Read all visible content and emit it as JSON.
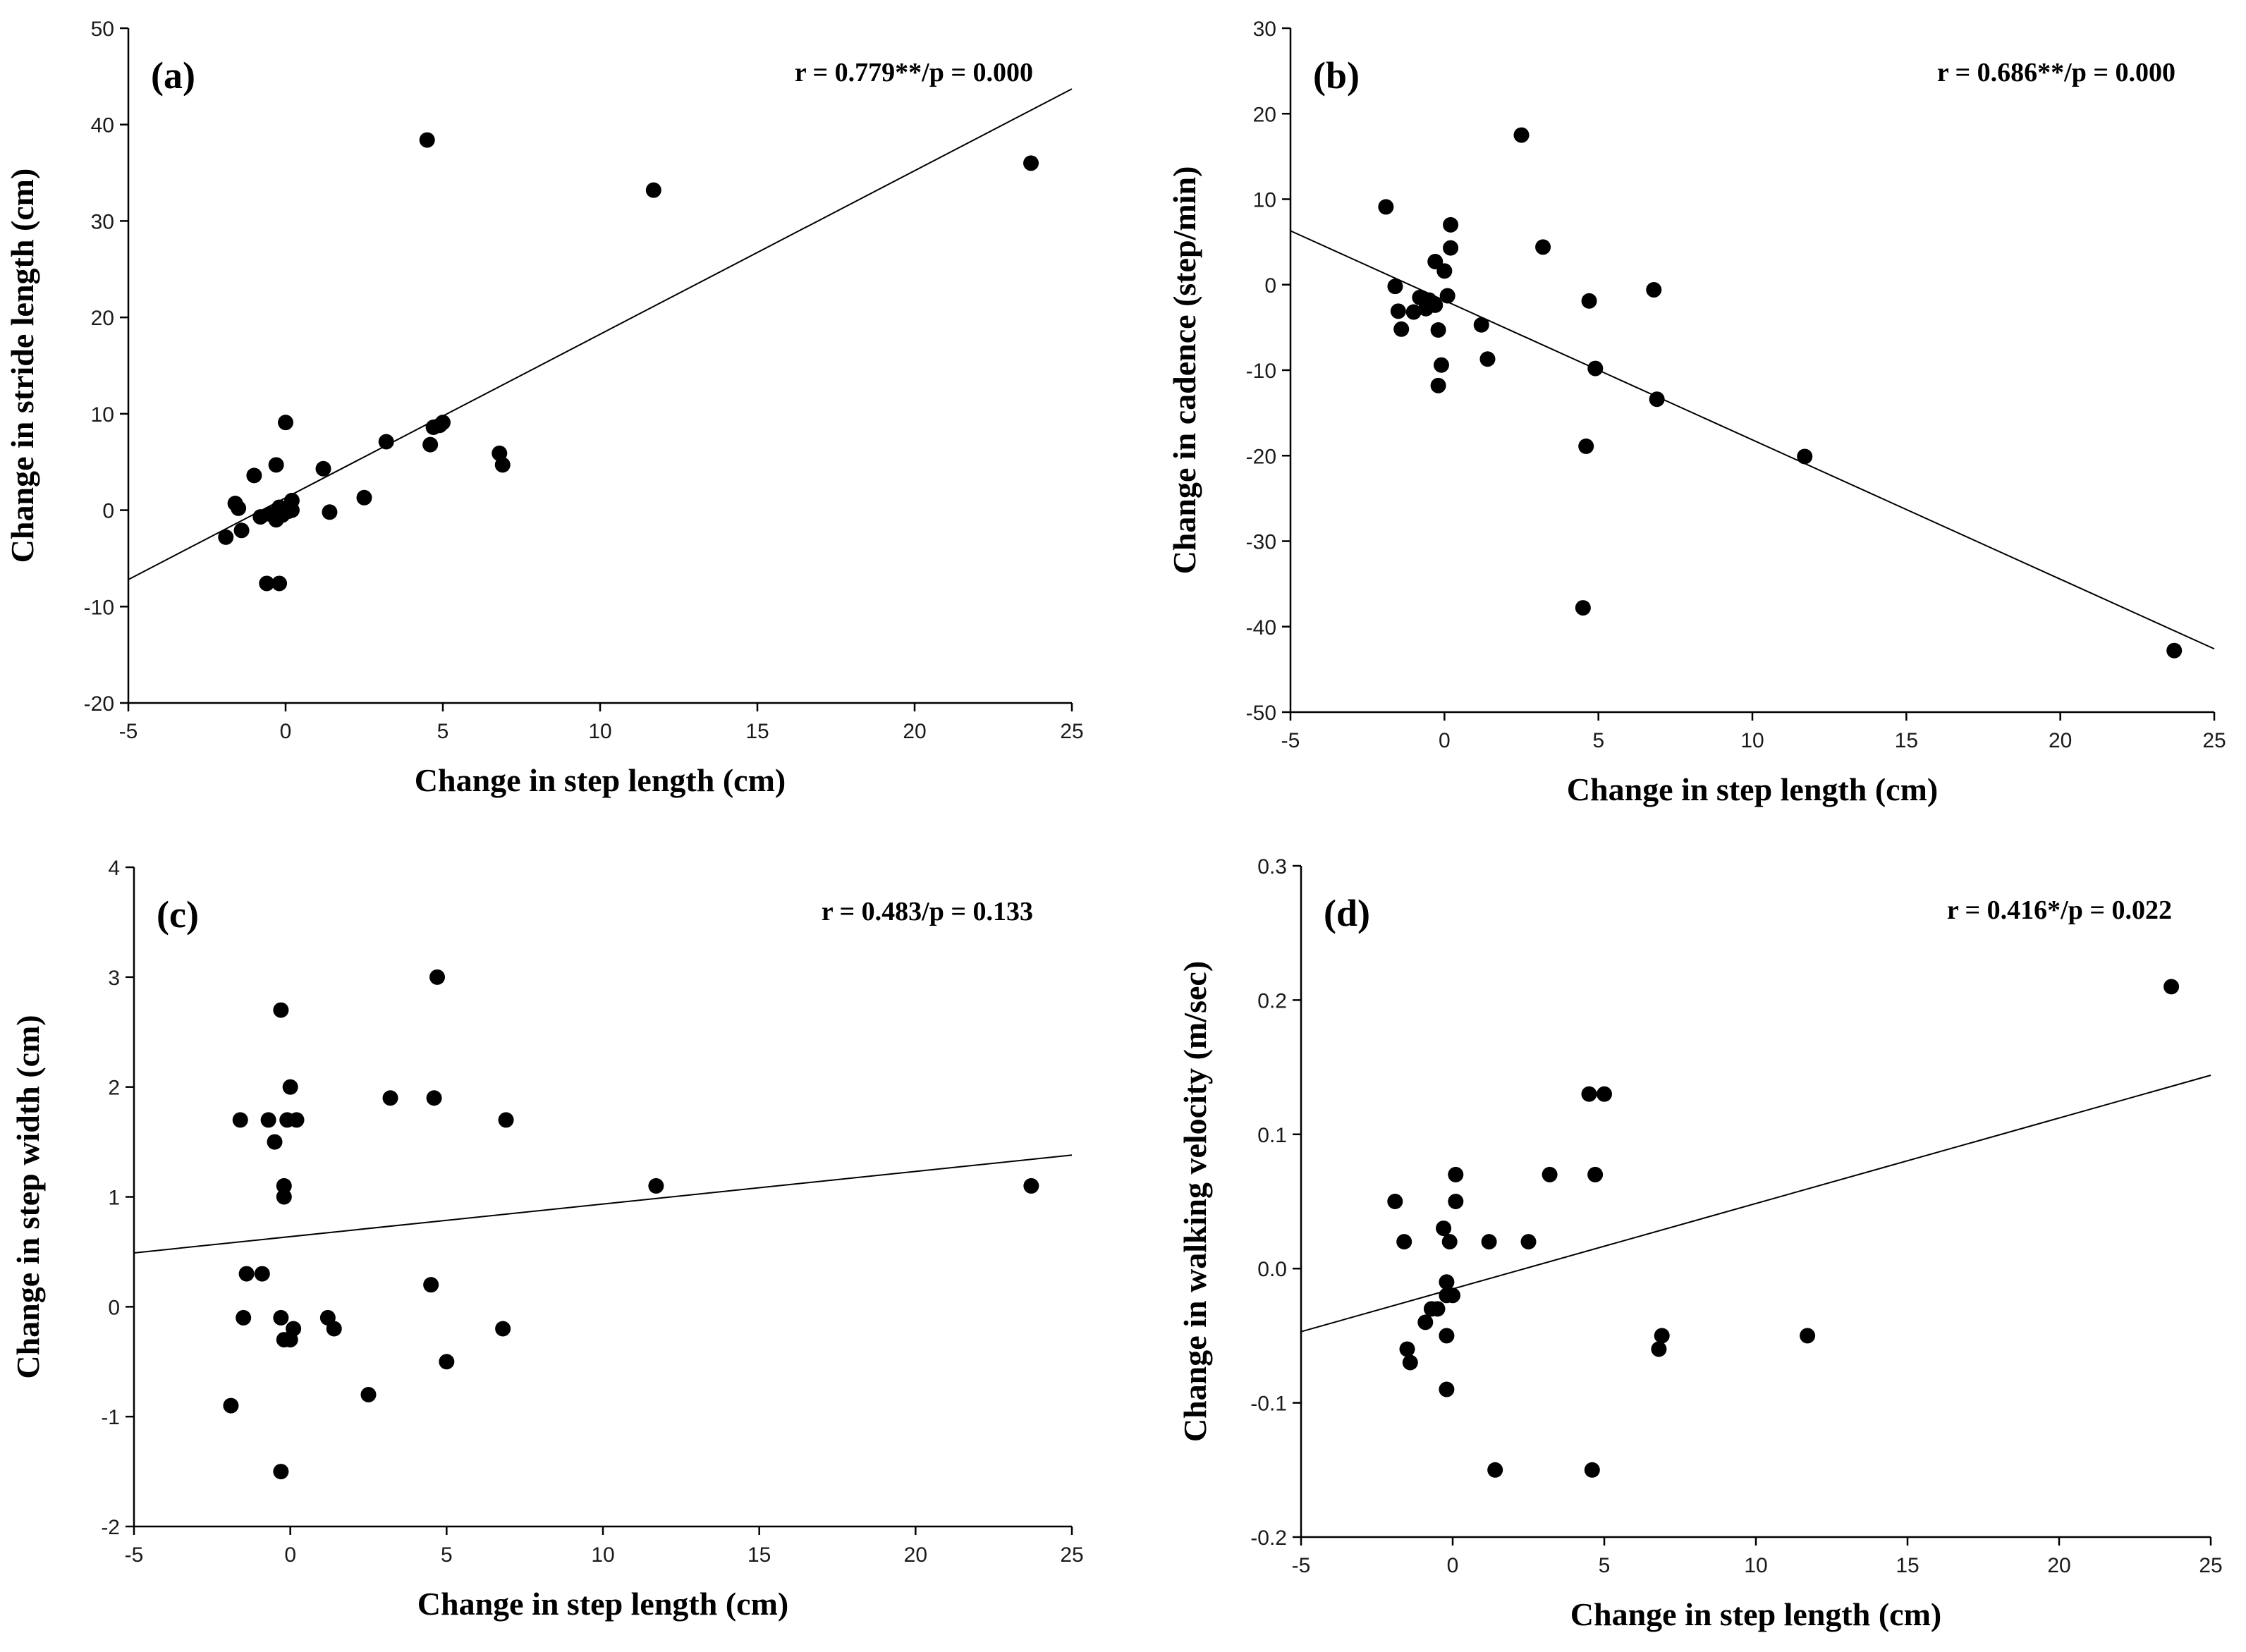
{
  "chart_data": [
    {
      "type": "scatter",
      "panel": "(a)",
      "stat": "r = 0.779**/p = 0.000",
      "xlabel": "Change in step length (cm)",
      "ylabel": "Change in stride length (cm)",
      "xlim": [
        -5,
        25
      ],
      "ylim": [
        -20,
        50
      ],
      "xticks": [
        -5,
        0,
        5,
        10,
        15,
        20,
        25
      ],
      "yticks": [
        -20,
        -10,
        0,
        10,
        20,
        30,
        40,
        50
      ],
      "fit": [
        [
          -5,
          -7.2
        ],
        [
          25,
          43.7
        ]
      ],
      "points": [
        [
          -1.9,
          -2.8
        ],
        [
          -1.6,
          0.7
        ],
        [
          -1.5,
          0.2
        ],
        [
          -1.4,
          -2.1
        ],
        [
          -1.0,
          3.6
        ],
        [
          -0.8,
          -0.7
        ],
        [
          -0.6,
          -7.6
        ],
        [
          -0.5,
          -0.4
        ],
        [
          -0.3,
          -1.0
        ],
        [
          -0.3,
          4.7
        ],
        [
          -0.2,
          -7.6
        ],
        [
          -0.2,
          0.3
        ],
        [
          -0.1,
          -0.5
        ],
        [
          0.0,
          9.1
        ],
        [
          0.1,
          -0.1
        ],
        [
          0.2,
          1.0
        ],
        [
          0.2,
          0.0
        ],
        [
          1.2,
          4.3
        ],
        [
          1.4,
          -0.2
        ],
        [
          2.5,
          1.3
        ],
        [
          3.2,
          7.1
        ],
        [
          4.5,
          38.4
        ],
        [
          4.6,
          6.8
        ],
        [
          4.7,
          8.6
        ],
        [
          4.9,
          8.8
        ],
        [
          5.0,
          9.1
        ],
        [
          6.8,
          5.9
        ],
        [
          6.9,
          4.7
        ],
        [
          11.7,
          33.2
        ],
        [
          23.7,
          36.0
        ]
      ]
    },
    {
      "type": "scatter",
      "panel": "(b)",
      "stat": "r = 0.686**/p = 0.000",
      "xlabel": "Change in step length (cm)",
      "ylabel": "Change in cadence (step/min)",
      "xlim": [
        -5,
        25
      ],
      "ylim": [
        -50,
        30
      ],
      "xticks": [
        -5,
        0,
        5,
        10,
        15,
        20,
        25
      ],
      "yticks": [
        -50,
        -40,
        -30,
        -20,
        -10,
        0,
        10,
        20,
        30
      ],
      "fit": [
        [
          -5,
          6.3
        ],
        [
          25,
          -42.6
        ]
      ],
      "points": [
        [
          -1.9,
          9.1
        ],
        [
          -1.6,
          -0.2
        ],
        [
          -1.5,
          -3.1
        ],
        [
          -1.4,
          -5.2
        ],
        [
          -1.0,
          -3.2
        ],
        [
          -0.8,
          -1.5
        ],
        [
          -0.6,
          -2.8
        ],
        [
          -0.5,
          -1.8
        ],
        [
          -0.3,
          2.7
        ],
        [
          -0.3,
          -2.4
        ],
        [
          -0.2,
          -5.3
        ],
        [
          -0.2,
          -11.8
        ],
        [
          -0.1,
          -9.4
        ],
        [
          0.0,
          1.6
        ],
        [
          0.1,
          -1.3
        ],
        [
          0.2,
          7.0
        ],
        [
          0.2,
          4.3
        ],
        [
          1.2,
          -4.7
        ],
        [
          1.4,
          -8.7
        ],
        [
          2.5,
          17.5
        ],
        [
          3.2,
          4.4
        ],
        [
          4.5,
          -37.8
        ],
        [
          4.6,
          -18.9
        ],
        [
          4.7,
          -1.9
        ],
        [
          4.9,
          -9.8
        ],
        [
          6.8,
          -0.6
        ],
        [
          6.9,
          -13.4
        ],
        [
          11.7,
          -20.1
        ],
        [
          23.7,
          -42.8
        ]
      ]
    },
    {
      "type": "scatter",
      "panel": "(c)",
      "stat": "r = 0.483/p = 0.133",
      "xlabel": "Change in step length (cm)",
      "ylabel": "Change in step width (cm)",
      "xlim": [
        -5,
        25
      ],
      "ylim": [
        -2,
        4
      ],
      "xticks": [
        -5,
        0,
        5,
        10,
        15,
        20,
        25
      ],
      "yticks": [
        -2,
        -1,
        0,
        1,
        2,
        3,
        4
      ],
      "fit": [
        [
          -5,
          0.49
        ],
        [
          25,
          1.38
        ]
      ],
      "points": [
        [
          -1.9,
          -0.9
        ],
        [
          -1.6,
          1.7
        ],
        [
          -1.5,
          -0.1
        ],
        [
          -1.4,
          0.3
        ],
        [
          -0.9,
          0.3
        ],
        [
          -0.7,
          1.7
        ],
        [
          -0.5,
          1.5
        ],
        [
          -0.3,
          2.7
        ],
        [
          -0.3,
          -1.5
        ],
        [
          -0.3,
          -0.1
        ],
        [
          -0.2,
          1.1
        ],
        [
          -0.2,
          1.0
        ],
        [
          -0.2,
          -0.3
        ],
        [
          -0.1,
          1.7
        ],
        [
          0.0,
          2.0
        ],
        [
          0.0,
          -0.3
        ],
        [
          0.1,
          -0.2
        ],
        [
          0.2,
          1.7
        ],
        [
          1.2,
          -0.1
        ],
        [
          1.4,
          -0.2
        ],
        [
          2.5,
          -0.8
        ],
        [
          3.2,
          1.9
        ],
        [
          4.5,
          0.2
        ],
        [
          4.6,
          1.9
        ],
        [
          4.7,
          3.0
        ],
        [
          5.0,
          -0.5
        ],
        [
          6.8,
          -0.2
        ],
        [
          6.9,
          1.7
        ],
        [
          11.7,
          1.1
        ],
        [
          23.7,
          1.1
        ]
      ]
    },
    {
      "type": "scatter",
      "panel": "(d)",
      "stat": "r = 0.416*/p = 0.022",
      "xlabel": "Change in step length (cm)",
      "ylabel": "Change in walking velocity (m/sec)",
      "xlim": [
        -5,
        25
      ],
      "ylim": [
        -0.2,
        0.3
      ],
      "xticks": [
        -5,
        0,
        5,
        10,
        15,
        20,
        25
      ],
      "yticks": [
        -0.2,
        -0.1,
        0.0,
        0.1,
        0.2,
        0.3
      ],
      "ytick_labels": [
        "-0.2",
        "-0.1",
        "0.0",
        "0.1",
        "0.2",
        "0.3"
      ],
      "fit": [
        [
          -5,
          -0.047
        ],
        [
          25,
          0.144
        ]
      ],
      "points": [
        [
          -1.9,
          0.05
        ],
        [
          -1.6,
          0.02
        ],
        [
          -1.5,
          -0.06
        ],
        [
          -1.4,
          -0.07
        ],
        [
          -0.9,
          -0.04
        ],
        [
          -0.7,
          -0.03
        ],
        [
          -0.5,
          -0.03
        ],
        [
          -0.3,
          0.03
        ],
        [
          -0.2,
          -0.02
        ],
        [
          -0.2,
          -0.01
        ],
        [
          -0.2,
          -0.05
        ],
        [
          -0.2,
          -0.09
        ],
        [
          -0.1,
          0.02
        ],
        [
          0.0,
          -0.02
        ],
        [
          0.1,
          0.05
        ],
        [
          0.1,
          0.07
        ],
        [
          1.2,
          0.02
        ],
        [
          1.4,
          -0.15
        ],
        [
          2.5,
          0.02
        ],
        [
          3.2,
          0.07
        ],
        [
          4.5,
          0.13
        ],
        [
          4.6,
          -0.15
        ],
        [
          4.7,
          0.07
        ],
        [
          5.0,
          0.13
        ],
        [
          6.8,
          -0.06
        ],
        [
          6.9,
          -0.05
        ],
        [
          11.7,
          -0.05
        ],
        [
          23.7,
          0.21
        ]
      ]
    }
  ]
}
